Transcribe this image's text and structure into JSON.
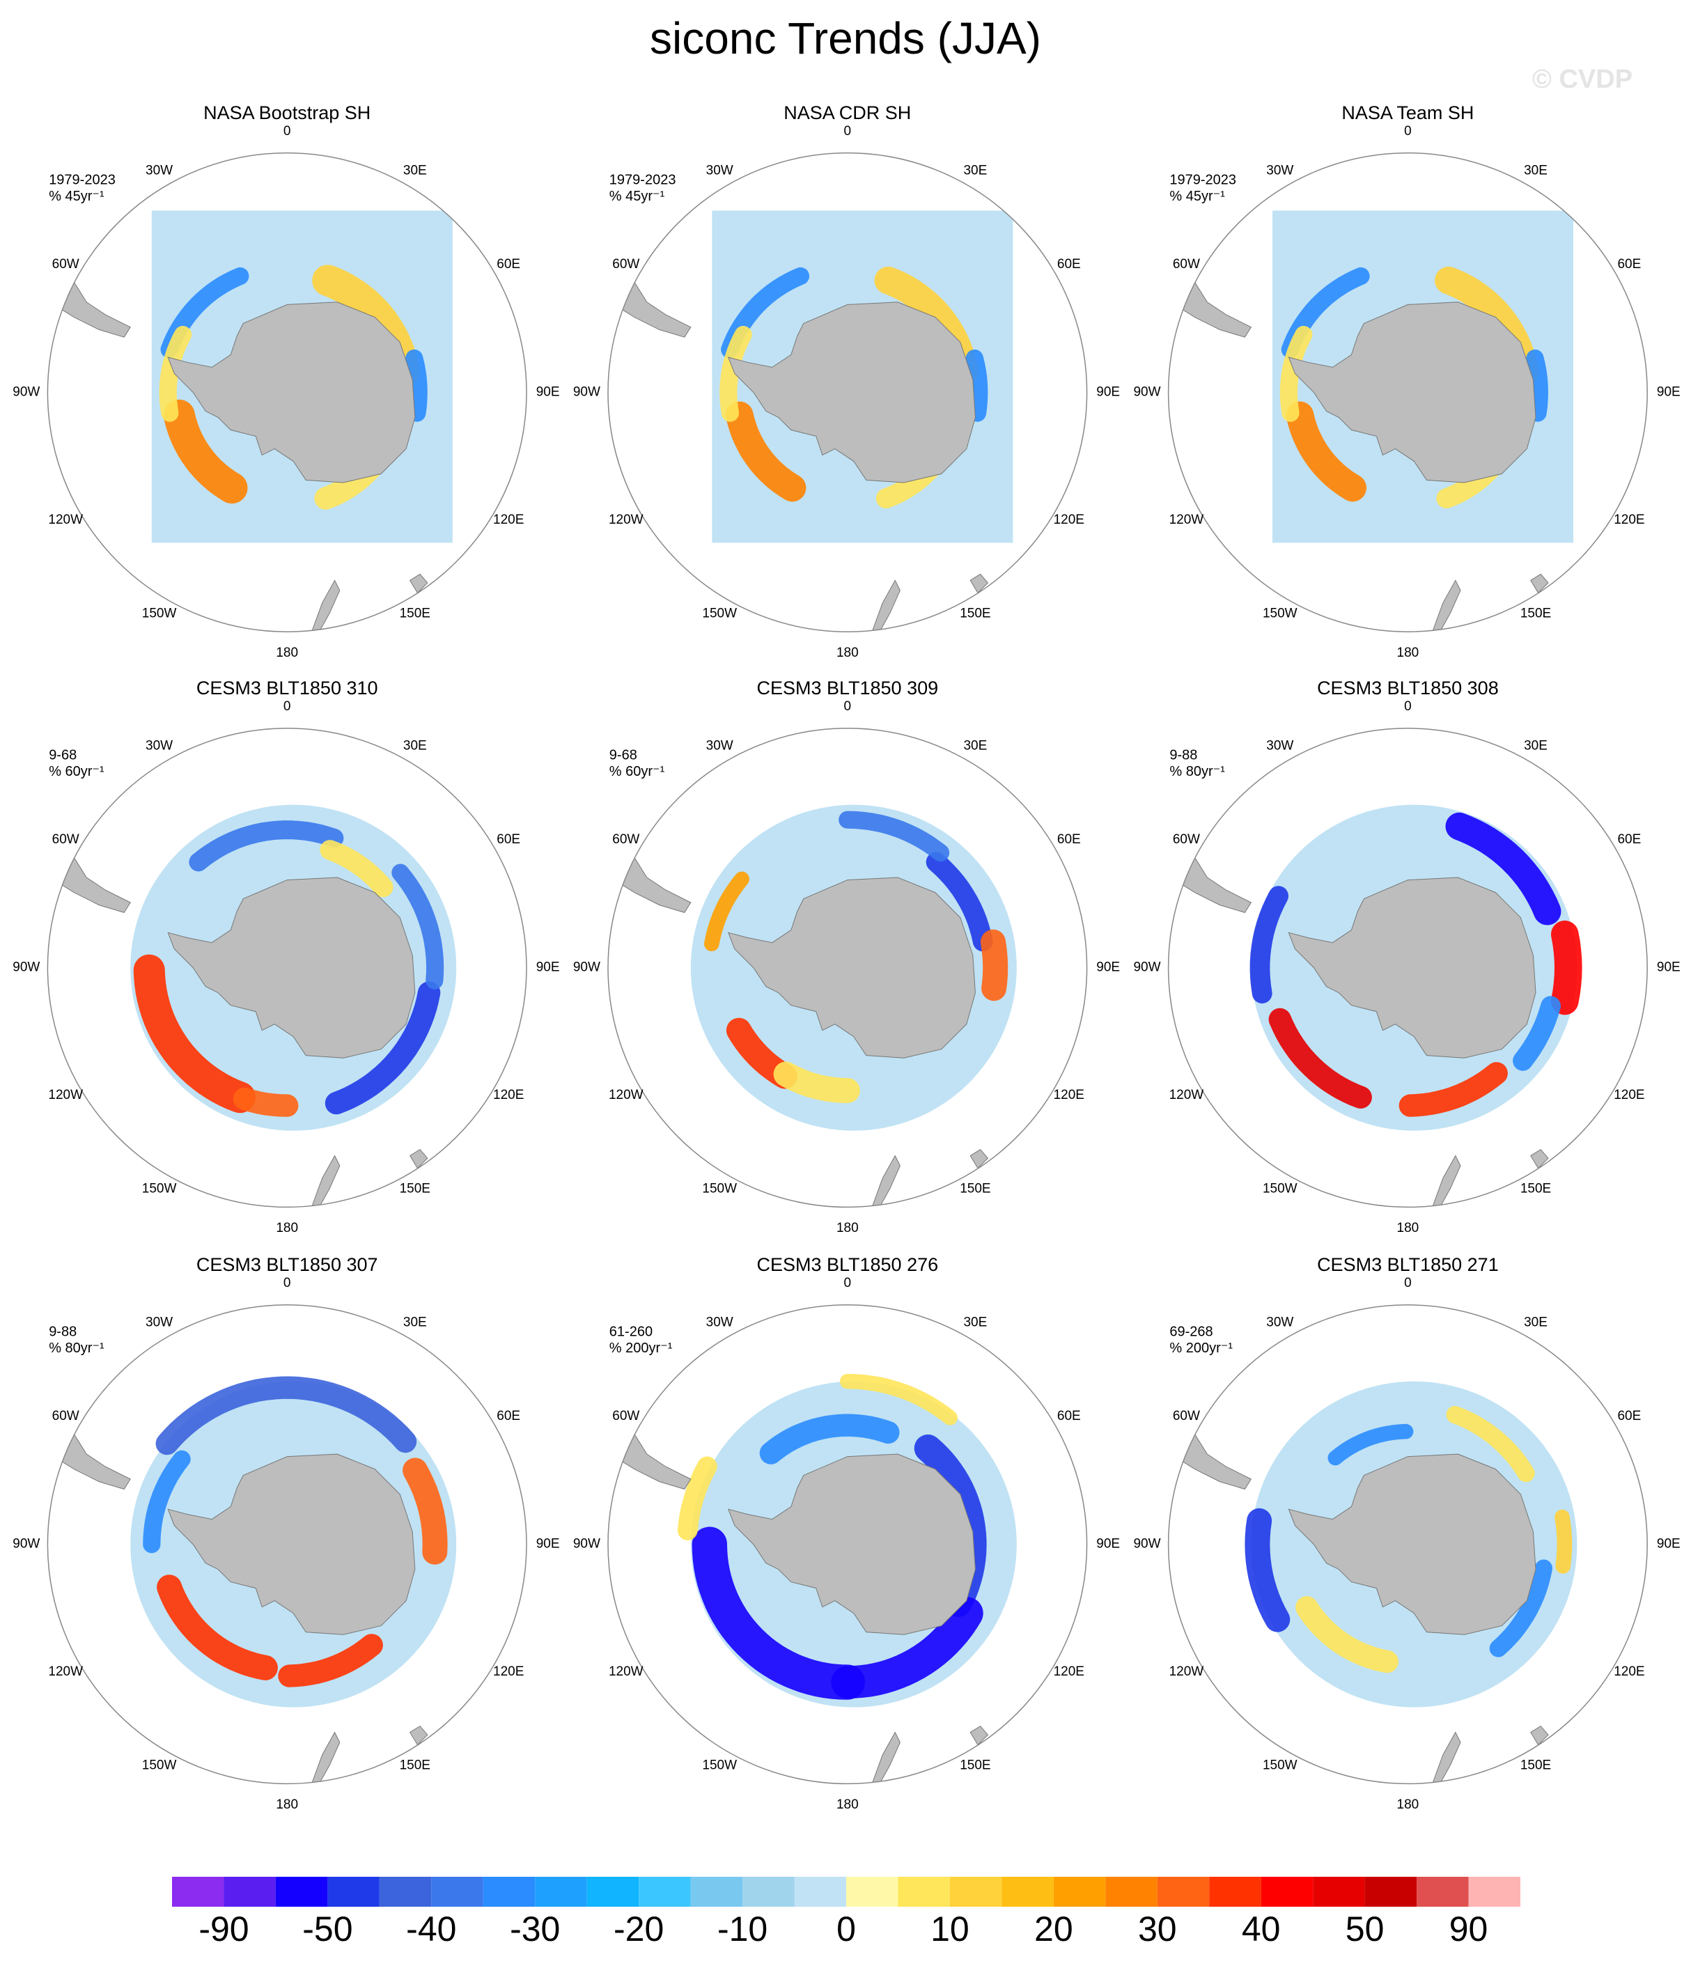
{
  "title": "siconc Trends (JJA)",
  "watermark": "© CVDP",
  "panels": [
    {
      "title": "NASA Bootstrap SH",
      "period": "1979-2023",
      "units": "% 45yr⁻¹"
    },
    {
      "title": "NASA CDR SH",
      "period": "1979-2023",
      "units": "% 45yr⁻¹"
    },
    {
      "title": "NASA Team SH",
      "period": "1979-2023",
      "units": "% 45yr⁻¹"
    },
    {
      "title": "CESM3 BLT1850 310",
      "period": "9-68",
      "units": "% 60yr⁻¹"
    },
    {
      "title": "CESM3 BLT1850 309",
      "period": "9-68",
      "units": "% 60yr⁻¹"
    },
    {
      "title": "CESM3 BLT1850 308",
      "period": "9-88",
      "units": "% 80yr⁻¹"
    },
    {
      "title": "CESM3 BLT1850 307",
      "period": "9-88",
      "units": "% 80yr⁻¹"
    },
    {
      "title": "CESM3 BLT1850 276",
      "period": "61-260",
      "units": "% 200yr⁻¹"
    },
    {
      "title": "CESM3 BLT1850 271",
      "period": "69-268",
      "units": "% 200yr⁻¹"
    }
  ],
  "longitude_labels": [
    "0",
    "30E",
    "60E",
    "90E",
    "120E",
    "150E",
    "180",
    "150W",
    "120W",
    "90W",
    "60W",
    "30W"
  ],
  "colorbar": {
    "colors": [
      "#8b2cf0",
      "#5a1ff0",
      "#1400ff",
      "#1f3ae8",
      "#3c64dc",
      "#3a78ec",
      "#2a8cff",
      "#1ea0ff",
      "#10b4ff",
      "#3cc6ff",
      "#78c8f0",
      "#a0d4ec",
      "#c0e2f4",
      "#fff8a8",
      "#ffe65a",
      "#ffd23c",
      "#ffbe14",
      "#ffa000",
      "#ff8200",
      "#ff6414",
      "#ff3200",
      "#ff0000",
      "#e60000",
      "#c80000",
      "#e05050",
      "#ffb4b4"
    ],
    "labels": [
      -90,
      -50,
      -40,
      -30,
      -20,
      -10,
      0,
      10,
      20,
      30,
      40,
      50,
      90
    ]
  }
}
